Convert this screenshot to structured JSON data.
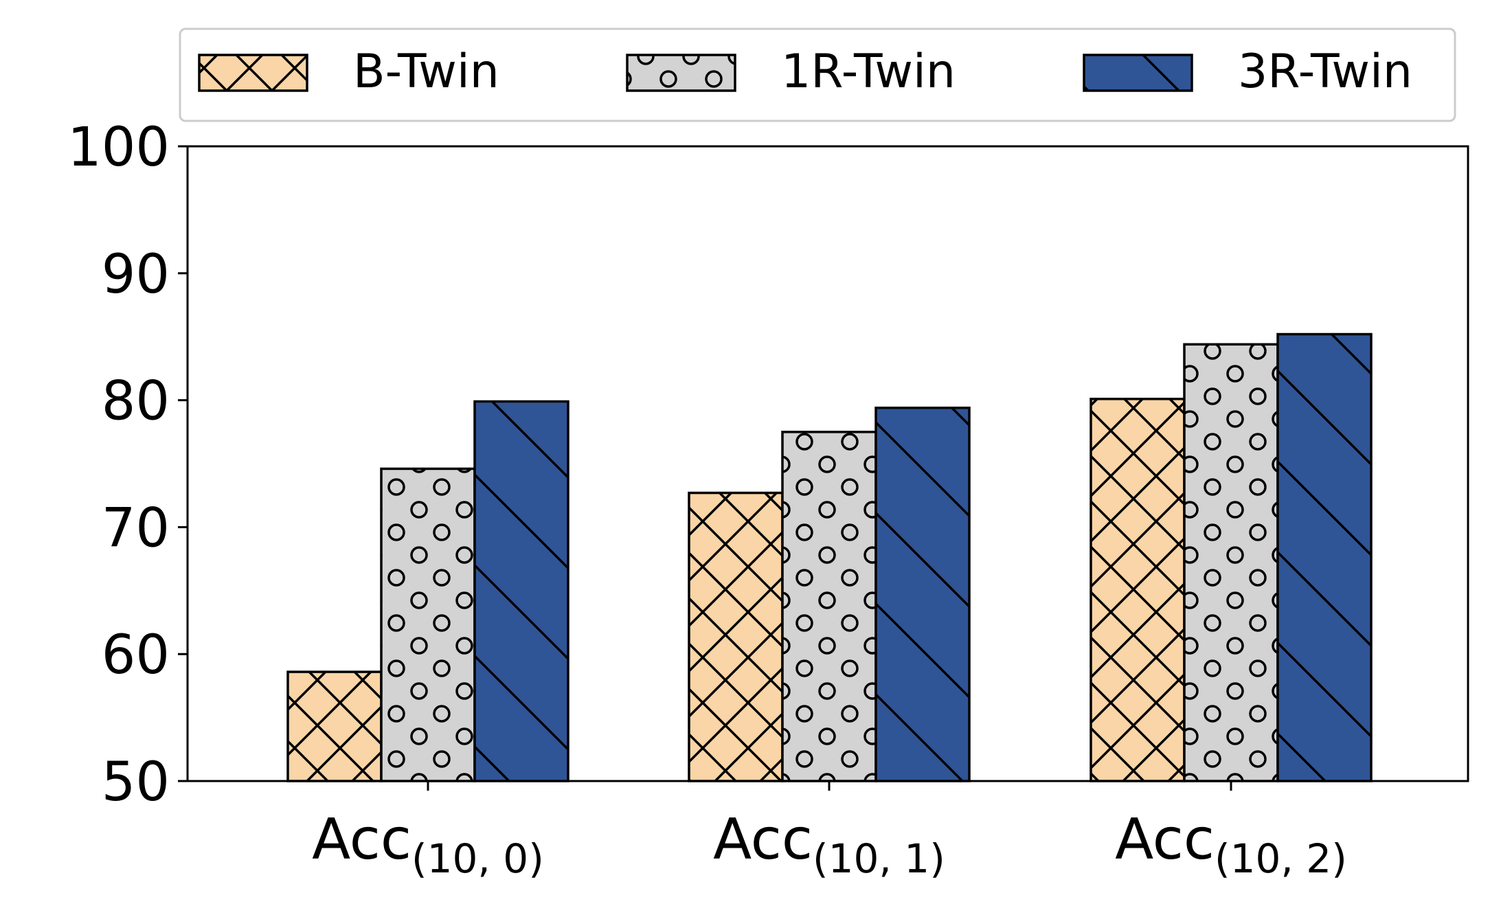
{
  "chart_data": {
    "type": "bar",
    "title": "",
    "xlabel": "",
    "ylabel": "",
    "ylim": [
      50,
      100
    ],
    "yticks": [
      50,
      60,
      70,
      80,
      90,
      100
    ],
    "grid": false,
    "legend_position": "top",
    "categories": [
      {
        "base": "Acc",
        "sub": "(10, 0)"
      },
      {
        "base": "Acc",
        "sub": "(10, 1)"
      },
      {
        "base": "Acc",
        "sub": "(10, 2)"
      }
    ],
    "series": [
      {
        "name": "B-Twin",
        "color": "#F9D5A7",
        "pattern": "cross-hatch",
        "values": [
          58.6,
          72.7,
          80.1
        ]
      },
      {
        "name": "1R-Twin",
        "color": "#D3D3D3",
        "pattern": "circles",
        "values": [
          74.6,
          77.5,
          84.4
        ]
      },
      {
        "name": "3R-Twin",
        "color": "#2F5597",
        "pattern": "back-diagonal",
        "values": [
          79.9,
          79.4,
          85.2
        ]
      }
    ]
  }
}
